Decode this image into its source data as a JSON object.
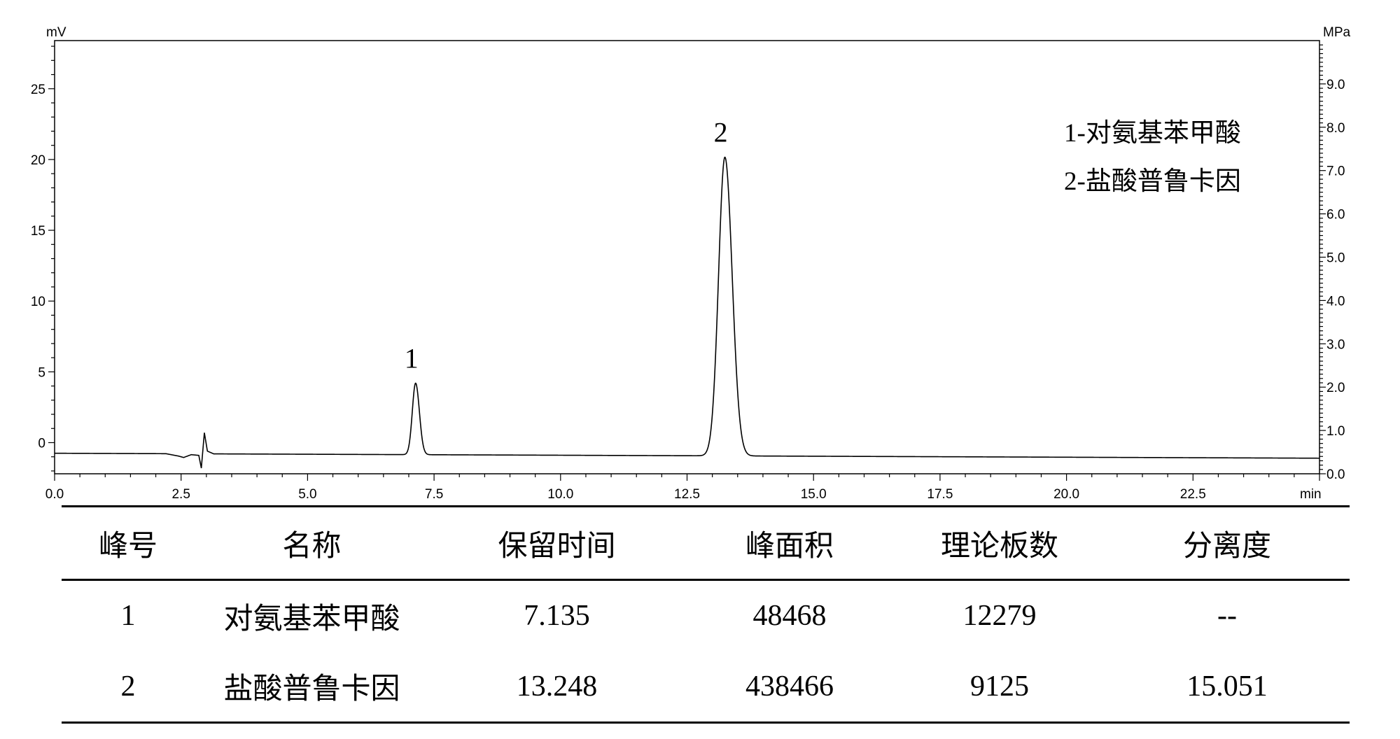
{
  "chart_data": {
    "type": "line",
    "xlabel": "min",
    "ylabel": "mV",
    "y2label": "MPa",
    "xlim": [
      0,
      25
    ],
    "ylim": [
      -2.2,
      28.4
    ],
    "y2lim": [
      0,
      10
    ],
    "xticks": [
      "0.0",
      "2.5",
      "5.0",
      "7.5",
      "10.0",
      "12.5",
      "15.0",
      "17.5",
      "20.0",
      "22.5"
    ],
    "yticks": [
      "0",
      "5",
      "10",
      "15",
      "20",
      "25"
    ],
    "y2ticks": [
      "0.0",
      "1.0",
      "2.0",
      "3.0",
      "4.0",
      "5.0",
      "6.0",
      "7.0",
      "8.0",
      "9.0"
    ],
    "baseline": {
      "start": -0.75,
      "end": -1.1
    },
    "disturbance": [
      {
        "x": 2.2,
        "y": -0.78
      },
      {
        "x": 2.45,
        "y": -0.95
      },
      {
        "x": 2.55,
        "y": -1.05
      },
      {
        "x": 2.7,
        "y": -0.85
      },
      {
        "x": 2.85,
        "y": -0.9
      },
      {
        "x": 2.9,
        "y": -1.8
      },
      {
        "x": 2.96,
        "y": 0.7
      },
      {
        "x": 3.02,
        "y": -0.6
      },
      {
        "x": 3.15,
        "y": -0.8
      }
    ],
    "peaks": [
      {
        "label": "1",
        "x": 7.135,
        "height": 5.05,
        "sigma": 0.065
      },
      {
        "label": "2",
        "x": 13.248,
        "height": 21.1,
        "sigma": 0.125
      }
    ],
    "grid": false
  },
  "legend": [
    {
      "text": "1-对氨基苯甲酸"
    },
    {
      "text": "2-盐酸普鲁卡因"
    }
  ],
  "table": {
    "headers": [
      "峰号",
      "名称",
      "保留时间",
      "峰面积",
      "理论板数",
      "分离度"
    ],
    "rows": [
      [
        "1",
        "对氨基苯甲酸",
        "7.135",
        "48468",
        "12279",
        "--"
      ],
      [
        "2",
        "盐酸普鲁卡因",
        "13.248",
        "438466",
        "9125",
        "15.051"
      ]
    ]
  }
}
